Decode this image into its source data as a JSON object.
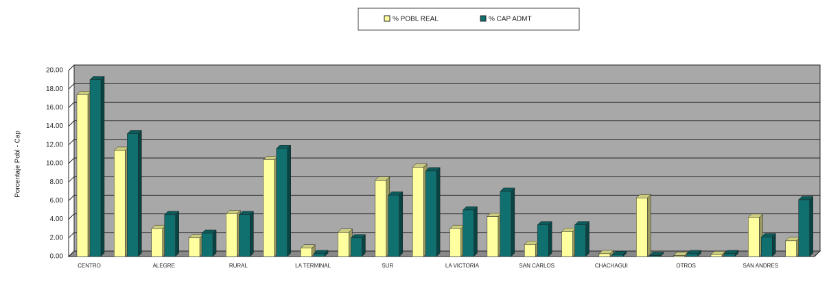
{
  "chart_data": {
    "type": "bar",
    "y_label": "Porcentaje Pobl - Cap",
    "categories": [
      "CENTRO",
      null,
      "ALEGRE",
      null,
      "RURAL",
      null,
      "LA TERMINAL",
      null,
      "SUR",
      null,
      "LA VICTORIA",
      null,
      "SAN CARLOS",
      null,
      "CHACHAGUI",
      null,
      "OTROS",
      null,
      "SAN ANDRES",
      null
    ],
    "series": [
      {
        "name": "% POBL REAL",
        "color": "#ffffa0",
        "values": [
          17.4,
          11.4,
          3.0,
          2.0,
          4.6,
          10.4,
          0.9,
          2.6,
          8.2,
          9.6,
          3.0,
          4.3,
          1.3,
          2.7,
          0.3,
          6.3,
          0.1,
          0.2,
          4.2,
          1.7
        ]
      },
      {
        "name": "% CAP ADMT",
        "color": "#107070",
        "values": [
          19.0,
          13.2,
          4.5,
          2.5,
          4.5,
          11.6,
          0.3,
          2.0,
          6.6,
          9.2,
          5.0,
          7.0,
          3.4,
          3.4,
          0.2,
          0.1,
          0.3,
          0.3,
          2.1,
          6.1
        ]
      }
    ],
    "ylim": [
      0,
      20
    ],
    "yticks": [
      {
        "value": 0,
        "label": "0.00"
      },
      {
        "value": 2,
        "label": "2.00"
      },
      {
        "value": 4,
        "label": "4.00"
      },
      {
        "value": 6,
        "label": "6.00"
      },
      {
        "value": 8,
        "label": "8.00"
      },
      {
        "value": 10,
        "label": "10.00"
      },
      {
        "value": 12,
        "label": "12.00"
      },
      {
        "value": 14,
        "label": "14.00"
      },
      {
        "value": 16,
        "label": "16.00"
      },
      {
        "value": 18,
        "label": "18.00"
      },
      {
        "value": 20,
        "label": "20.00"
      }
    ],
    "grid": true
  }
}
